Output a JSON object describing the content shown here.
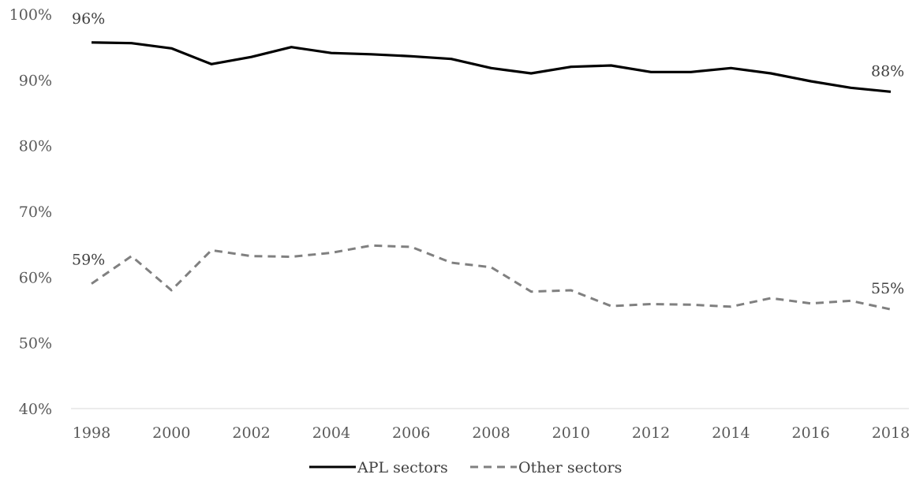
{
  "chart_data": {
    "type": "line",
    "title": "",
    "xlabel": "",
    "ylabel": "",
    "x": [
      1998,
      1999,
      2000,
      2001,
      2002,
      2003,
      2004,
      2005,
      2006,
      2007,
      2008,
      2009,
      2010,
      2011,
      2012,
      2013,
      2014,
      2015,
      2016,
      2017,
      2018
    ],
    "x_tick_labels": [
      "1998",
      "2000",
      "2002",
      "2004",
      "2006",
      "2008",
      "2010",
      "2012",
      "2014",
      "2016",
      "2018"
    ],
    "ylim": [
      40,
      100
    ],
    "y_tick_labels": [
      "40%",
      "50%",
      "60%",
      "70%",
      "80%",
      "90%",
      "100%"
    ],
    "grid": false,
    "legend_position": "bottom",
    "series": [
      {
        "name": "APL sectors",
        "style": "solid",
        "color": "#000000",
        "values": [
          95.7,
          95.6,
          94.8,
          92.4,
          93.5,
          95.0,
          94.1,
          93.9,
          93.6,
          93.2,
          91.8,
          91.0,
          92.0,
          92.2,
          91.2,
          91.2,
          91.8,
          91.0,
          89.8,
          88.8,
          88.2
        ],
        "labels": {
          "first": "96%",
          "last": "88%"
        }
      },
      {
        "name": "Other sectors",
        "style": "dashed",
        "color": "#808080",
        "values": [
          59.0,
          63.2,
          58.0,
          64.1,
          63.2,
          63.1,
          63.7,
          64.8,
          64.6,
          62.2,
          61.5,
          57.8,
          58.0,
          55.6,
          55.9,
          55.8,
          55.5,
          56.8,
          56.0,
          56.4,
          55.1
        ],
        "labels": {
          "first": "59%",
          "last": "55%"
        }
      }
    ]
  }
}
